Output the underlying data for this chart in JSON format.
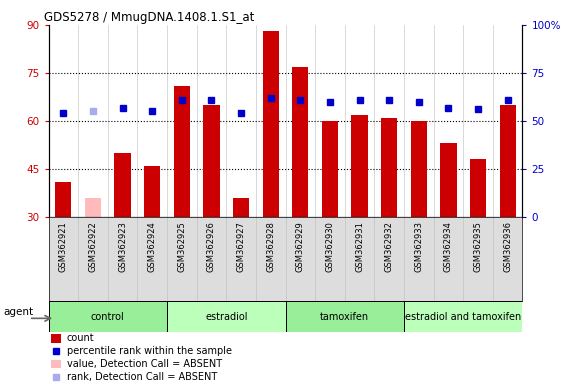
{
  "title": "GDS5278 / MmugDNA.1408.1.S1_at",
  "samples": [
    "GSM362921",
    "GSM362922",
    "GSM362923",
    "GSM362924",
    "GSM362925",
    "GSM362926",
    "GSM362927",
    "GSM362928",
    "GSM362929",
    "GSM362930",
    "GSM362931",
    "GSM362932",
    "GSM362933",
    "GSM362934",
    "GSM362935",
    "GSM362936"
  ],
  "count_values": [
    41,
    null,
    50,
    46,
    71,
    65,
    36,
    88,
    77,
    60,
    62,
    61,
    60,
    53,
    48,
    65
  ],
  "count_absent_values": [
    null,
    36,
    null,
    null,
    null,
    null,
    null,
    null,
    null,
    null,
    null,
    null,
    null,
    null,
    null,
    null
  ],
  "rank_values": [
    54,
    null,
    57,
    55,
    61,
    61,
    54,
    62,
    61,
    60,
    61,
    61,
    60,
    57,
    56,
    61
  ],
  "rank_absent_values": [
    null,
    55,
    null,
    null,
    null,
    null,
    null,
    null,
    null,
    null,
    null,
    null,
    null,
    null,
    null,
    null
  ],
  "count_color": "#cc0000",
  "count_absent_color": "#ffbbbb",
  "rank_color": "#0000cc",
  "rank_absent_color": "#aaaaee",
  "ylim_left": [
    30,
    90
  ],
  "ylim_right": [
    0,
    100
  ],
  "yticks_left": [
    30,
    45,
    60,
    75,
    90
  ],
  "yticks_right": [
    0,
    25,
    50,
    75,
    100
  ],
  "ytick_labels_right": [
    "0",
    "25",
    "50",
    "75",
    "100%"
  ],
  "groups": [
    {
      "label": "control",
      "start": 0,
      "end": 4,
      "color": "#99ee99"
    },
    {
      "label": "estradiol",
      "start": 4,
      "end": 8,
      "color": "#bbffbb"
    },
    {
      "label": "tamoxifen",
      "start": 8,
      "end": 12,
      "color": "#99ee99"
    },
    {
      "label": "estradiol and tamoxifen",
      "start": 12,
      "end": 16,
      "color": "#bbffbb"
    }
  ],
  "agent_label": "agent",
  "bar_width": 0.55,
  "marker_size": 5,
  "grid_yticks": [
    45,
    60,
    75
  ]
}
